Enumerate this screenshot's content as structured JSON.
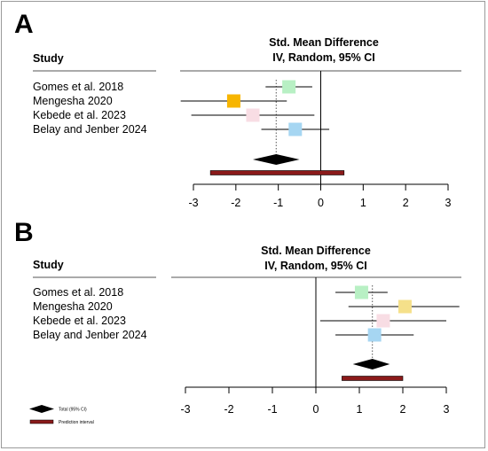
{
  "chart_data": [
    {
      "panel": "A",
      "type": "forest",
      "header": {
        "left": "Study",
        "line1": "Std. Mean Difference",
        "line2": "IV, Random, 95% CI"
      },
      "studies": [
        {
          "name": "Gomes et al. 2018",
          "smd": -0.75,
          "lower": -1.3,
          "upper": -0.2,
          "color": "#b8f0c4"
        },
        {
          "name": "Mengesha 2020",
          "smd": -2.05,
          "lower": -3.3,
          "upper": -0.8,
          "color": "#f7b500"
        },
        {
          "name": "Kebede et al. 2023",
          "smd": -1.6,
          "lower": -3.05,
          "upper": -0.15,
          "color": "#f8dde4"
        },
        {
          "name": "Belay and Jenber 2024",
          "smd": -0.6,
          "lower": -1.4,
          "upper": 0.2,
          "color": "#a6d6f2"
        }
      ],
      "overall": {
        "smd": -1.05,
        "lower": -1.6,
        "upper": -0.5
      },
      "prediction_interval": {
        "lower": -2.6,
        "upper": 0.55
      },
      "xlim": [
        -3,
        3
      ],
      "ticks": [
        "-3",
        "-2",
        "-1",
        "0",
        "1",
        "2",
        "3"
      ]
    },
    {
      "panel": "B",
      "type": "forest",
      "header": {
        "left": "Study",
        "line1": "Std. Mean Difference",
        "line2": "IV, Random, 95% CI"
      },
      "studies": [
        {
          "name": "Gomes et al. 2018",
          "smd": 1.05,
          "lower": 0.45,
          "upper": 1.65,
          "color": "#b8f0c4"
        },
        {
          "name": "Mengesha 2020",
          "smd": 2.05,
          "lower": 0.75,
          "upper": 3.3,
          "color": "#f5e08a"
        },
        {
          "name": "Kebede et al. 2023",
          "smd": 1.55,
          "lower": 0.1,
          "upper": 3.0,
          "color": "#f8dde4"
        },
        {
          "name": "Belay and Jenber 2024",
          "smd": 1.35,
          "lower": 0.45,
          "upper": 2.25,
          "color": "#a6d6f2"
        }
      ],
      "overall": {
        "smd": 1.3,
        "lower": 0.85,
        "upper": 1.7
      },
      "prediction_interval": {
        "lower": 0.6,
        "upper": 2.0
      },
      "xlim": [
        -3,
        3
      ],
      "ticks": [
        "-3",
        "-2",
        "-1",
        "0",
        "1",
        "2",
        "3"
      ]
    }
  ],
  "legend": {
    "total": "Total (95% CI)",
    "prediction": "Prediction interval"
  },
  "colors": {
    "prediction_fill": "#8b1a1a",
    "diamond": "#000000"
  }
}
